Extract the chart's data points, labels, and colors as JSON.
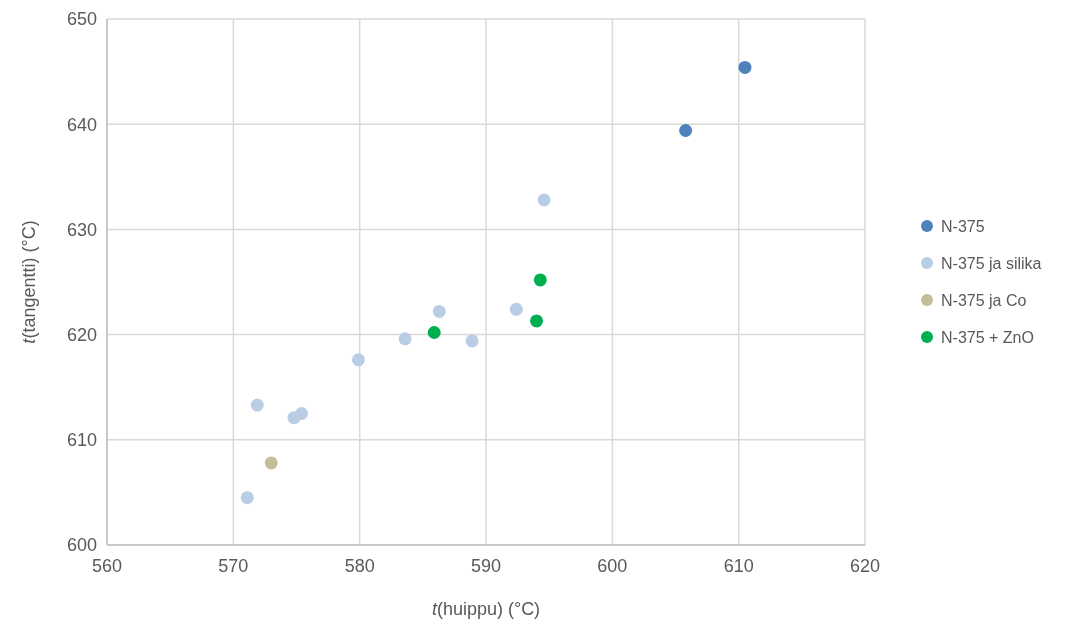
{
  "chart_data": {
    "type": "scatter",
    "xlabel": "t(huippu) (°C)",
    "ylabel": "t(tangentti) (°C)",
    "xlim": [
      560,
      620
    ],
    "xticks": [
      560,
      570,
      580,
      590,
      600,
      610,
      620
    ],
    "ylim": [
      600,
      650
    ],
    "yticks": [
      600,
      610,
      620,
      630,
      640,
      650
    ],
    "grid": true,
    "legend": "right",
    "marker": "circle",
    "series": [
      {
        "name": "N-375",
        "color": "#4f81bd",
        "x": [
          610.5,
          605.8
        ],
        "values": [
          645.4,
          639.4
        ]
      },
      {
        "name": "N-375 ja silika",
        "color": "#b9cde5",
        "x": [
          594.6,
          586.3,
          592.4,
          583.6,
          588.9,
          579.9,
          571.9,
          575.4,
          574.8,
          571.1
        ],
        "values": [
          632.8,
          622.2,
          622.4,
          619.6,
          619.4,
          617.6,
          613.3,
          612.5,
          612.1,
          604.5
        ]
      },
      {
        "name": "N-375 ja Co",
        "color": "#c4bd97",
        "x": [
          573.0
        ],
        "values": [
          607.8
        ]
      },
      {
        "name": "N-375 + ZnO",
        "color": "#00b050",
        "x": [
          585.9,
          594.3,
          594.0
        ],
        "values": [
          620.2,
          625.2,
          621.3
        ]
      }
    ]
  }
}
